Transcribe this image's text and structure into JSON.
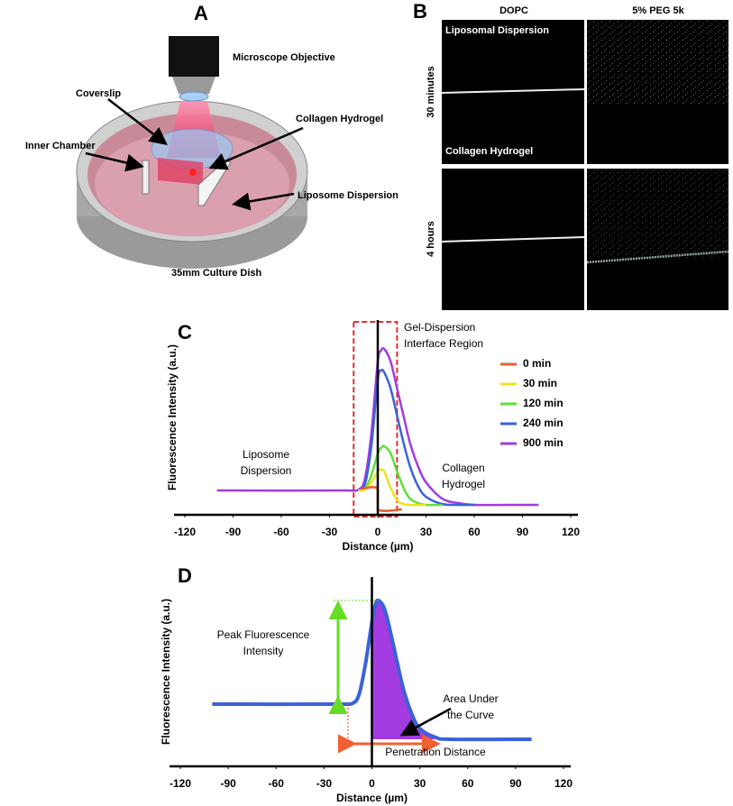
{
  "panel_a": {
    "letter": "A",
    "labels": {
      "objective": "Microscope Objective",
      "coverslip": "Coverslip",
      "collagen": "Collagen Hydrogel",
      "inner_chamber": "Inner Chamber",
      "liposome": "Liposome Dispersion",
      "dish": "35mm Culture Dish"
    }
  },
  "panel_b": {
    "letter": "B",
    "columns": [
      "DOPC",
      "5% PEG 5k"
    ],
    "rows": [
      "30 minutes",
      "4 hours"
    ],
    "overlays": [
      "Liposomal Dispersion",
      "Collagen Hydrogel"
    ]
  },
  "chart_data": [
    {
      "type": "line",
      "panel_label": "C",
      "x_label": "Distance (µm)",
      "y_label": "Fluorescence Intensity (a.u.)",
      "xlim": [
        -120,
        120
      ],
      "xticks": [
        -120,
        -90,
        -60,
        -30,
        0,
        30,
        60,
        90,
        120
      ],
      "ylim": [
        0,
        100
      ],
      "legend": "right",
      "annotations": [
        [
          "Gel-Dispersion",
          "Interface Region"
        ],
        [
          "Liposome",
          "Dispersion"
        ],
        [
          "Collagen",
          "Hydrogel"
        ]
      ],
      "series": [
        {
          "name": "0 min",
          "color": "#e8602c",
          "x": [
            -10,
            0,
            0,
            15
          ],
          "values": [
            14.5,
            14.5,
            3,
            3
          ]
        },
        {
          "name": "30 min",
          "color": "#f0e020",
          "x": [
            -12,
            -8,
            -4,
            0,
            2,
            4,
            8,
            12,
            16,
            20,
            30
          ],
          "values": [
            13.5,
            14,
            18,
            24,
            25,
            24,
            15,
            8,
            6,
            5.5,
            5.5
          ]
        },
        {
          "name": "120 min",
          "color": "#5ee03a",
          "x": [
            -12,
            -8,
            -4,
            0,
            2,
            4,
            8,
            12,
            16,
            20,
            25,
            30,
            40
          ],
          "values": [
            13.5,
            14.5,
            22,
            34,
            37,
            38,
            34,
            24,
            15,
            9,
            6.5,
            5.5,
            5.5
          ]
        },
        {
          "name": "240 min",
          "color": "#3a62d8",
          "x": [
            -12,
            -8,
            -4,
            0,
            2,
            4,
            8,
            12,
            16,
            20,
            25,
            30,
            40,
            50,
            60
          ],
          "values": [
            13.5,
            17,
            38,
            75,
            80,
            79,
            70,
            55,
            40,
            27,
            16,
            10,
            6,
            5.5,
            5.5
          ]
        },
        {
          "name": "900 min",
          "color": "#a23be0",
          "x": [
            -100,
            -20,
            -12,
            -8,
            -4,
            0,
            2,
            4,
            8,
            12,
            16,
            20,
            25,
            30,
            40,
            50,
            60,
            80,
            100
          ],
          "values": [
            13.5,
            13.5,
            14,
            20,
            45,
            85,
            91,
            92,
            85,
            70,
            55,
            40,
            27,
            18,
            9,
            6.5,
            5.5,
            5.5,
            5.5
          ]
        }
      ]
    },
    {
      "type": "area",
      "panel_label": "D",
      "x_label": "Distance (µm)",
      "y_label": "Fluorescence Intensity (a.u.)",
      "xlim": [
        -120,
        120
      ],
      "xticks": [
        -120,
        -90,
        -60,
        -30,
        0,
        30,
        60,
        90,
        120
      ],
      "ylim": [
        0,
        100
      ],
      "color": "#3a62d8",
      "fill_color": "#a23be0",
      "annotations": [
        [
          "Peak Fluorescence",
          "Intensity"
        ],
        [
          "Area Under",
          "the Curve"
        ],
        [
          "Penetration Distance"
        ]
      ],
      "x": [
        -100,
        -20,
        -12,
        -8,
        -4,
        0,
        2,
        4,
        8,
        12,
        16,
        20,
        25,
        30,
        40,
        50,
        100
      ],
      "values": [
        34.5,
        34.5,
        35,
        40,
        57,
        80,
        89,
        92,
        87,
        73,
        57,
        42,
        29,
        21,
        16,
        15,
        15
      ]
    }
  ]
}
